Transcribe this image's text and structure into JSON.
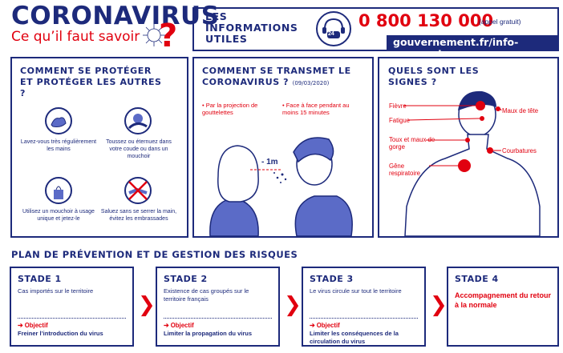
{
  "header": {
    "title": "CORONAVIRUS",
    "subtitle": "Ce qu’il faut savoir",
    "question_mark": "?"
  },
  "info": {
    "label": "LES INFORMATIONS UTILES",
    "phone_badge": "24",
    "phone_number": "0 800 130 000",
    "phone_note": "(appel gratuit)",
    "url": "gouvernement.fr/info-coronavirus"
  },
  "protect": {
    "title": "COMMENT SE PROTÉGER ET PROTÉGER LES AUTRES ?",
    "gestures": [
      {
        "caption": "Lavez-vous très régulièrement les mains",
        "icon": "hand-washing-icon"
      },
      {
        "caption": "Toussez ou éternuez dans votre coude ou dans un mouchoir",
        "icon": "cough-elbow-icon"
      },
      {
        "caption": "Utilisez un mouchoir à usage unique et jetez-le",
        "icon": "tissue-icon"
      },
      {
        "caption": "Saluez sans se serrer la main, évitez les embrassades",
        "icon": "no-handshake-icon"
      }
    ]
  },
  "transmission": {
    "title": "COMMENT SE TRANSMET LE CORONAVIRUS ?",
    "date": "(09/03/2020)",
    "bullets": [
      "• Par la projection de gouttelettes",
      "• Face à face pendant au moins 15 minutes"
    ],
    "distance": "- 1m"
  },
  "symptoms": {
    "title": "QUELS SONT LES SIGNES ?",
    "labels": [
      "Fièvre",
      "Fatigue",
      "Toux et maux de gorge",
      "Gêne respiratoire",
      "Maux de tête",
      "Courbatures"
    ]
  },
  "plan": {
    "title": "PLAN DE PRÉVENTION ET DE GESTION DES RISQUES",
    "objective_label": "➔ Objectif",
    "stages": [
      {
        "name": "STADE 1",
        "desc": "Cas importés sur le territoire",
        "goal": "Freiner l’introduction du virus"
      },
      {
        "name": "STADE 2",
        "desc": "Existence de cas groupés sur le territoire français",
        "goal": "Limiter la propagation du virus"
      },
      {
        "name": "STADE 3",
        "desc": "Le virus circule sur tout le territoire",
        "goal": "Limiter les conséquences de la circulation du virus"
      },
      {
        "name": "STADE 4",
        "desc": "Accompagnement du retour à la normale"
      }
    ],
    "chevron": "❯"
  },
  "colors": {
    "navy": "#1d2a7b",
    "red": "#e1000f",
    "blue_figure": "#5b6bc7"
  }
}
